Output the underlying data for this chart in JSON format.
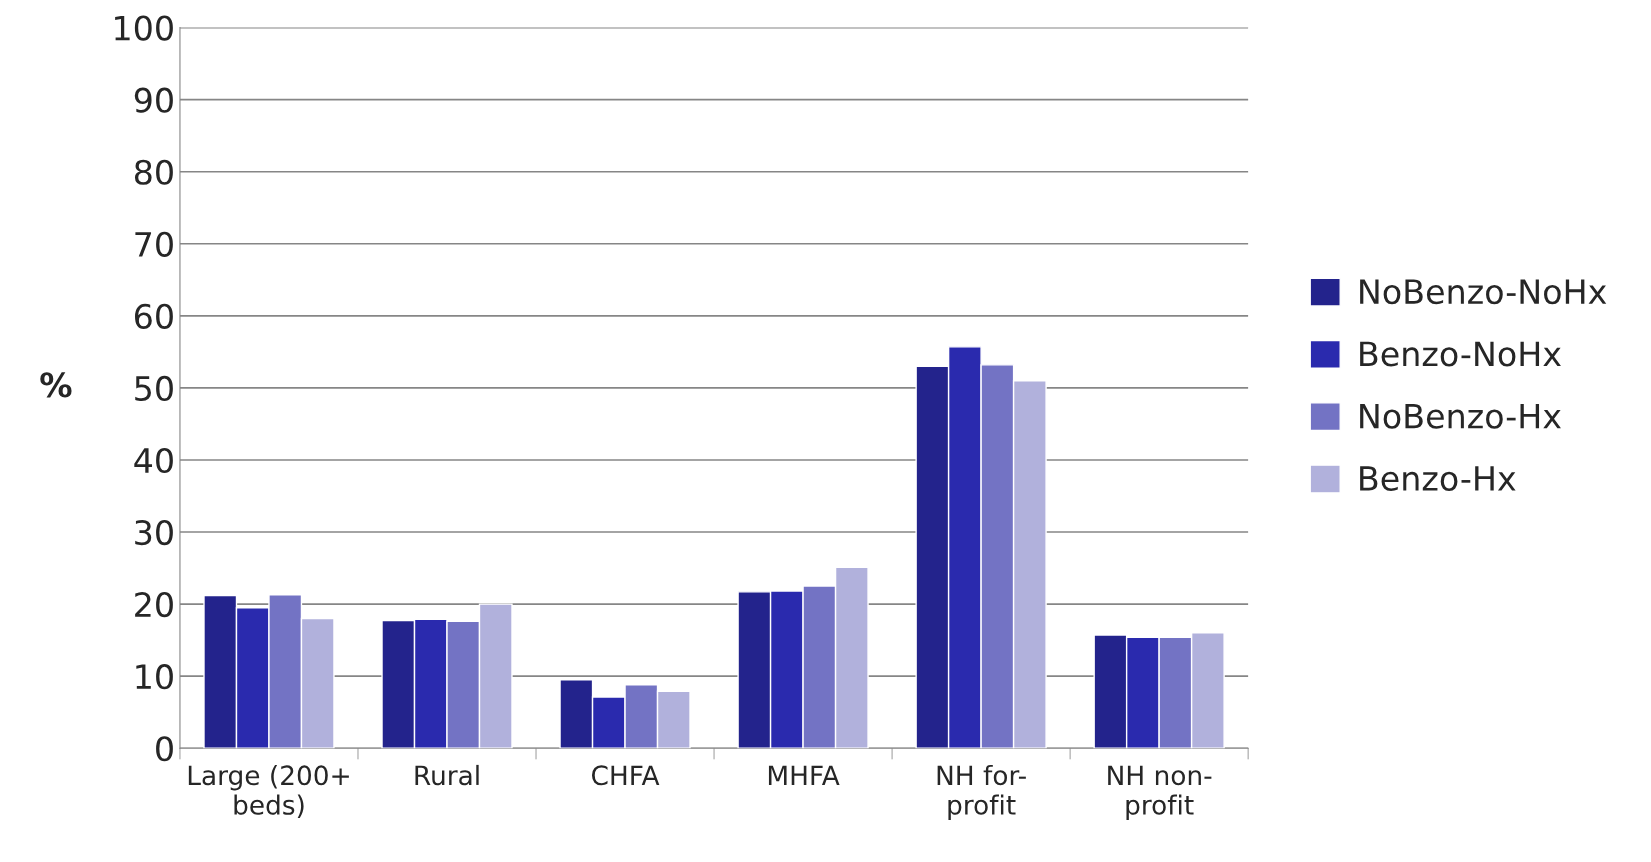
{
  "chart_data": {
    "type": "bar",
    "ylabel": "%",
    "categories": [
      "Large (200+\nbeds)",
      "Rural",
      "CHFA",
      "MHFA",
      "NH for-\nprofit",
      "NH non-\nprofit"
    ],
    "series": [
      {
        "name": "NoBenzo-NoHx",
        "color": "#23238c",
        "values": [
          21.2,
          17.7,
          9.5,
          21.7,
          53.0,
          15.7
        ]
      },
      {
        "name": "Benzo-NoHx",
        "color": "#2a2aae",
        "values": [
          19.5,
          17.9,
          7.1,
          21.8,
          55.7,
          15.4
        ]
      },
      {
        "name": "NoBenzo-Hx",
        "color": "#7373c4",
        "values": [
          21.3,
          17.6,
          8.8,
          22.5,
          53.2,
          15.4
        ]
      },
      {
        "name": "Benzo-Hx",
        "color": "#b1b1dc",
        "values": [
          18.0,
          20.0,
          7.9,
          25.1,
          51.0,
          16.0
        ]
      }
    ],
    "ylim": [
      0,
      100
    ],
    "yticks": [
      0,
      10,
      20,
      30,
      40,
      50,
      60,
      70,
      80,
      90,
      100
    ],
    "grid": "y",
    "legend": "right"
  }
}
